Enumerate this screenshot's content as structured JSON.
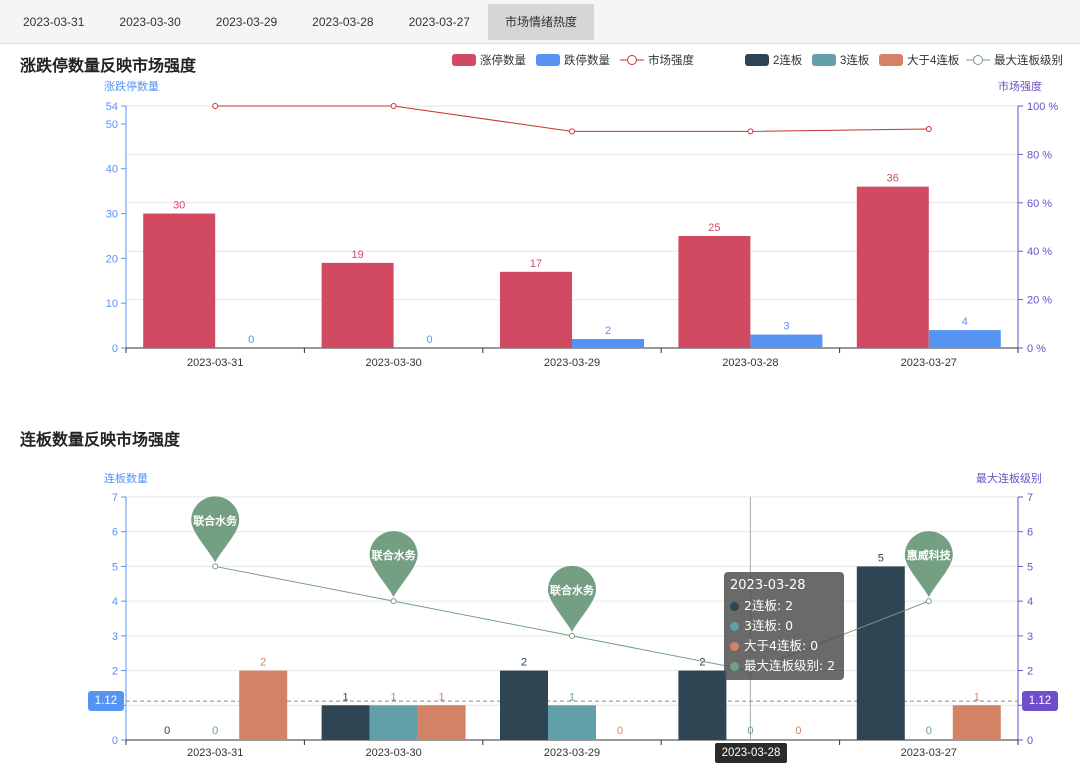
{
  "tabs": [
    {
      "label": "2023-03-31",
      "active": false
    },
    {
      "label": "2023-03-30",
      "active": false
    },
    {
      "label": "2023-03-29",
      "active": false
    },
    {
      "label": "2023-03-28",
      "active": false
    },
    {
      "label": "2023-03-27",
      "active": false
    },
    {
      "label": "市场情绪热度",
      "active": true
    }
  ],
  "chart1": {
    "title": "涨跌停数量反映市场强度"
  },
  "chart2": {
    "title": "连板数量反映市场强度"
  },
  "tooltip": {
    "title": "2023-03-28",
    "rows": [
      {
        "label": "2连板: 2",
        "color": "#2f4554"
      },
      {
        "label": "3连板: 0",
        "color": "#61a0a8"
      },
      {
        "label": "大于4连板: 0",
        "color": "#d48265"
      },
      {
        "label": "最大连板级别: 2",
        "color": "#749f83"
      }
    ]
  },
  "axis_pointer": {
    "x_label": "2023-03-28",
    "y_left_label": "1.12",
    "y_right_label": "1.12",
    "y_value": 1.12
  },
  "chart_data": [
    {
      "type": "bar",
      "title": "涨跌停数量反映市场强度",
      "categories": [
        "2023-03-31",
        "2023-03-30",
        "2023-03-29",
        "2023-03-28",
        "2023-03-27"
      ],
      "ylabel": "涨跌停数量",
      "ylabel_right": "市场强度",
      "ylim": [
        0,
        54
      ],
      "yticks": [
        0,
        10,
        20,
        30,
        40,
        50,
        54
      ],
      "ylim_right": [
        0,
        100
      ],
      "yticks_right": [
        "0 %",
        "20 %",
        "40 %",
        "60 %",
        "80 %",
        "100 %"
      ],
      "legend_position": "top-right",
      "series": [
        {
          "name": "涨停数量",
          "type": "bar",
          "color": "#d14a61",
          "values": [
            30,
            19,
            17,
            25,
            36
          ]
        },
        {
          "name": "跌停数量",
          "type": "bar",
          "color": "#5793f3",
          "values": [
            0,
            0,
            2,
            3,
            4
          ]
        },
        {
          "name": "市场强度",
          "type": "line",
          "axis": "right",
          "color": "#c23531",
          "values": [
            100,
            100,
            89.5,
            89.5,
            90.5
          ]
        }
      ],
      "grid": true
    },
    {
      "type": "bar",
      "title": "连板数量反映市场强度",
      "categories": [
        "2023-03-31",
        "2023-03-30",
        "2023-03-29",
        "2023-03-28",
        "2023-03-27"
      ],
      "ylabel": "连板数量",
      "ylabel_right": "最大连板级别",
      "ylim": [
        0,
        7
      ],
      "yticks": [
        0,
        1,
        2,
        3,
        4,
        5,
        6,
        7
      ],
      "ylim_right": [
        0,
        7
      ],
      "yticks_right": [
        0,
        1,
        2,
        3,
        4,
        5,
        6,
        7
      ],
      "legend_position": "top-right",
      "series": [
        {
          "name": "2连板",
          "type": "bar",
          "color": "#2f4554",
          "values": [
            0,
            1,
            2,
            2,
            5
          ]
        },
        {
          "name": "3连板",
          "type": "bar",
          "color": "#61a0a8",
          "values": [
            0,
            1,
            1,
            0,
            0
          ]
        },
        {
          "name": "大于4连板",
          "type": "bar",
          "color": "#d48265",
          "values": [
            2,
            1,
            0,
            0,
            1
          ]
        },
        {
          "name": "最大连板级别",
          "type": "line",
          "axis": "right",
          "color": "#749f83",
          "values": [
            5,
            4,
            3,
            2,
            4
          ],
          "markers": [
            "联合水务",
            "联合水务",
            "联合水务",
            "",
            "惠威科技"
          ]
        }
      ],
      "grid": true
    }
  ]
}
